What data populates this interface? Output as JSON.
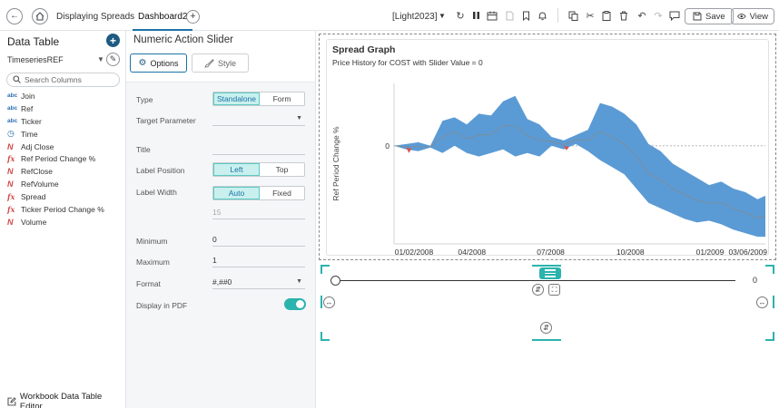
{
  "header": {
    "tab_displaying": "Displaying Spreads",
    "tab_dashboard": "Dashboard2",
    "theme": "[Light2023]",
    "save_label": "Save",
    "view_label": "View"
  },
  "sidebar": {
    "title": "Data Table",
    "datasource": "TimeseriesREF",
    "search_placeholder": "Search Columns",
    "columns": [
      {
        "icon": "abc",
        "label": "Join"
      },
      {
        "icon": "abc",
        "label": "Ref"
      },
      {
        "icon": "abc",
        "label": "Ticker"
      },
      {
        "icon": "clock",
        "label": "Time"
      },
      {
        "icon": "numeric",
        "label": "Adj Close"
      },
      {
        "icon": "fx",
        "label": "Ref Period Change %"
      },
      {
        "icon": "numeric",
        "label": "RefClose"
      },
      {
        "icon": "numeric",
        "label": "RefVolume"
      },
      {
        "icon": "fx",
        "label": "Spread"
      },
      {
        "icon": "fx",
        "label": "Ticker Period Change %"
      },
      {
        "icon": "numeric",
        "label": "Volume"
      }
    ],
    "footer_label": "Workbook Data Table Editor"
  },
  "settings": {
    "title": "Numeric Action Slider",
    "options_tab": "Options",
    "style_tab": "Style",
    "type_label": "Type",
    "type_options": [
      "Standalone",
      "Form"
    ],
    "type_selected": "Standalone",
    "target_label": "Target Parameter",
    "target_value": "",
    "title_label": "Title",
    "title_value": "",
    "label_position_label": "Label Position",
    "label_position_options": [
      "Left",
      "Top"
    ],
    "label_position_selected": "Left",
    "label_width_label": "Label Width",
    "label_width_options": [
      "Auto",
      "Fixed"
    ],
    "label_width_selected": "Auto",
    "label_width_value": "15",
    "minimum_label": "Minimum",
    "minimum_value": "0",
    "maximum_label": "Maximum",
    "maximum_value": "1",
    "format_label": "Format",
    "format_value": "#,##0",
    "pdf_label": "Display in PDF",
    "pdf_enabled": true,
    "accent_color": "#2bb3ad"
  },
  "graph": {
    "title": "Spread Graph",
    "subtitle": "Price History for COST with Slider Value = 0"
  },
  "slider": {
    "value": 0,
    "value_label": "0",
    "min": 0,
    "max": 1
  },
  "chart_data": {
    "type": "area",
    "title": "Spread Graph",
    "subtitle": "Price History for COST with Slider Value = 0",
    "ylabel": "Ref Period Change %",
    "xlabel": "",
    "x_tick_labels": [
      "01/02/2008",
      "04/2008",
      "07/2008",
      "10/2008",
      "01/2009",
      "03/06/2009"
    ],
    "x_tick_dates": [
      "2008-01-02",
      "2008-04-01",
      "2008-07-01",
      "2008-10-01",
      "2009-01-01",
      "2009-03-06"
    ],
    "y_tick_labels": [
      "0"
    ],
    "ylim": [
      -55,
      35
    ],
    "reference_line": 0,
    "colors": {
      "positive": "#5b9bd5",
      "negative": "#d9534f",
      "line": "#888888"
    },
    "series": [
      {
        "name": "Spread band",
        "x": [
          "2008-01-02",
          "2008-01-16",
          "2008-01-30",
          "2008-02-13",
          "2008-02-27",
          "2008-03-12",
          "2008-03-26",
          "2008-04-09",
          "2008-04-23",
          "2008-05-07",
          "2008-05-21",
          "2008-06-04",
          "2008-06-18",
          "2008-07-02",
          "2008-07-16",
          "2008-07-30",
          "2008-08-13",
          "2008-08-27",
          "2008-09-10",
          "2008-09-24",
          "2008-10-08",
          "2008-10-22",
          "2008-11-05",
          "2008-11-19",
          "2008-12-03",
          "2008-12-17",
          "2008-12-31",
          "2009-01-14",
          "2009-01-28",
          "2009-02-11",
          "2009-02-25",
          "2009-03-06"
        ],
        "upper": [
          0,
          1,
          2,
          0,
          14,
          16,
          12,
          18,
          17,
          25,
          28,
          15,
          12,
          5,
          3,
          6,
          9,
          24,
          22,
          18,
          12,
          1,
          -3,
          -10,
          -14,
          -18,
          -22,
          -20,
          -24,
          -26,
          -30,
          -28
        ],
        "lower": [
          0,
          -2,
          -3,
          -1,
          -4,
          0,
          -4,
          -6,
          -4,
          -2,
          -6,
          -4,
          -6,
          0,
          -2,
          1,
          -3,
          -8,
          -12,
          -16,
          -24,
          -32,
          -35,
          -38,
          -41,
          -43,
          -42,
          -44,
          -47,
          -49,
          -51,
          -51
        ]
      }
    ]
  }
}
